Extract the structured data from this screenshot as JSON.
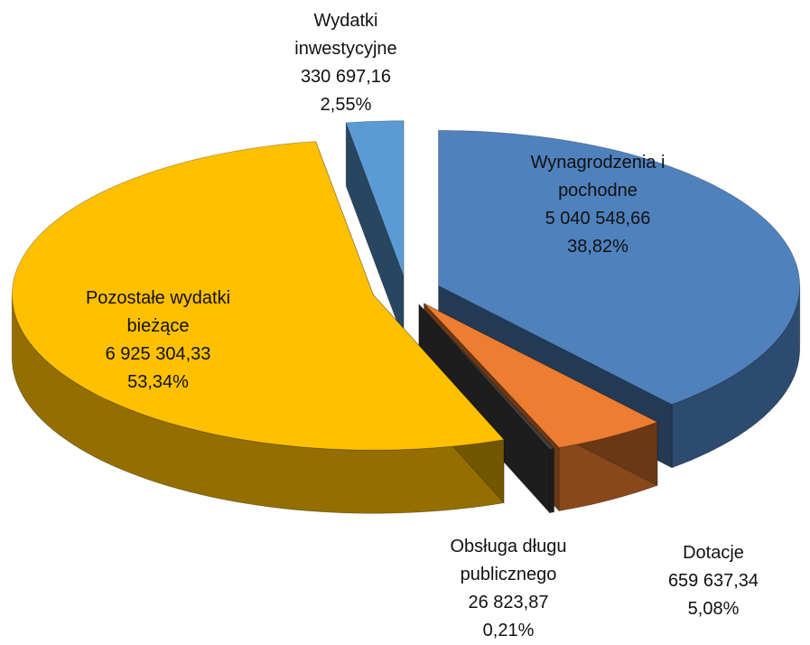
{
  "chart_data": {
    "type": "pie",
    "categories": [
      "Wynagrodzenia i pochodne",
      "Dotacje",
      "Obsługa długu publicznego",
      "Pozostałe wydatki bieżące",
      "Wydatki inwestycyjne"
    ],
    "values": [
      5040548.66,
      659637.34,
      26823.87,
      6925304.33,
      330697.16
    ],
    "value_labels": [
      "5 040 548,66",
      "659 637,34",
      "26 823,87",
      "6 925 304,33",
      "330 697,16"
    ],
    "percents": [
      38.82,
      5.08,
      0.21,
      53.34,
      2.55
    ],
    "percent_labels": [
      "38,82%",
      "5,08%",
      "0,21%",
      "53,34%",
      "2,55%"
    ],
    "colors": [
      "#4f81bd",
      "#ed7d31",
      "#404040",
      "#ffc000",
      "#5b9bd5"
    ]
  }
}
